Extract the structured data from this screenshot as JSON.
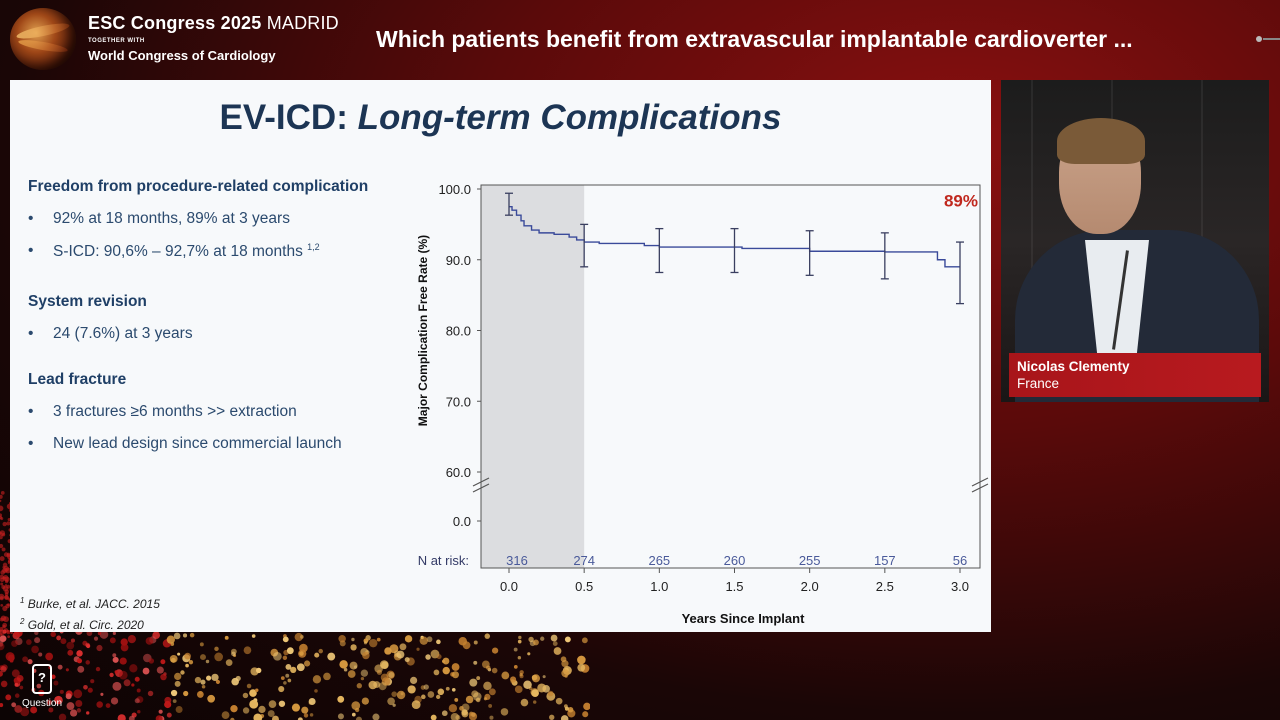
{
  "header": {
    "congress_name": "ESC Congress 2025",
    "city": "MADRID",
    "together_with": "TOGETHER WITH",
    "world_congress": "World Congress of Cardiology",
    "session_title": "Which patients benefit from extravascular implantable cardioverter ..."
  },
  "slide": {
    "title_main": "EV-ICD: ",
    "title_italic": "Long-term Complications",
    "sections": [
      {
        "heading": "Freedom from procedure-related complication",
        "items": [
          "92% at 18 months, 89% at 3 years",
          "S-ICD: 90,6% – 92,7% at 18 months"
        ],
        "item2_sup": "1,2"
      },
      {
        "heading": "System revision",
        "items": [
          "24 (7.6%) at 3 years"
        ]
      },
      {
        "heading": "Lead fracture",
        "items": [
          "3 fractures ≥6 months >> extraction",
          "New lead design since commercial launch"
        ]
      }
    ],
    "refs": [
      {
        "sup": "1",
        "text": "Burke, et al. JACC. 2015"
      },
      {
        "sup": "2",
        "text": "Gold, et al. Circ. 2020"
      }
    ]
  },
  "chart_data": {
    "type": "line",
    "title": "",
    "xlabel": "Years Since Implant",
    "ylabel": "Major Complication Free Rate (%)",
    "x_ticks": [
      "0.0",
      "0.5",
      "1.0",
      "1.5",
      "2.0",
      "2.5",
      "3.0"
    ],
    "y_ticks": [
      "100.0",
      "90.0",
      "80.0",
      "70.0",
      "60.0",
      "0.0"
    ],
    "xlim": [
      0,
      3.0
    ],
    "ylim": [
      60,
      100
    ],
    "axis_break": true,
    "shaded_region": [
      0,
      0.5
    ],
    "series": [
      {
        "color": "#3a4a9a",
        "x": [
          0.0,
          0.02,
          0.05,
          0.08,
          0.1,
          0.15,
          0.2,
          0.3,
          0.4,
          0.45,
          0.5,
          0.6,
          0.9,
          1.0,
          1.5,
          1.55,
          2.0,
          2.5,
          2.85,
          2.9,
          3.0
        ],
        "y": [
          97.5,
          97.0,
          96.3,
          95.5,
          94.8,
          94.2,
          93.8,
          93.6,
          93.2,
          92.8,
          92.5,
          92.3,
          92.0,
          91.8,
          91.8,
          91.6,
          91.2,
          91.1,
          90.0,
          89.0,
          89.0
        ]
      }
    ],
    "error_bars": [
      {
        "x": 0.0,
        "low": 96.3,
        "high": 99.4
      },
      {
        "x": 0.5,
        "low": 89.0,
        "high": 95.0
      },
      {
        "x": 1.0,
        "low": 88.2,
        "high": 94.4
      },
      {
        "x": 1.5,
        "low": 88.2,
        "high": 94.4
      },
      {
        "x": 2.0,
        "low": 87.8,
        "high": 94.1
      },
      {
        "x": 2.5,
        "low": 87.3,
        "high": 93.8
      },
      {
        "x": 3.0,
        "low": 83.8,
        "high": 92.5
      }
    ],
    "annotation": "89%",
    "annotation_color": "#c0281e",
    "at_risk_label": "N at risk:",
    "at_risk": [
      {
        "x": 0.0,
        "n": "316"
      },
      {
        "x": 0.5,
        "n": "274"
      },
      {
        "x": 1.0,
        "n": "265"
      },
      {
        "x": 1.5,
        "n": "260"
      },
      {
        "x": 2.0,
        "n": "255"
      },
      {
        "x": 2.5,
        "n": "157"
      },
      {
        "x": 3.0,
        "n": "56"
      }
    ]
  },
  "speaker": {
    "name": "Nicolas Clementy",
    "country": "France"
  },
  "question_button": {
    "label": "Question",
    "icon": "phone-question-icon"
  }
}
